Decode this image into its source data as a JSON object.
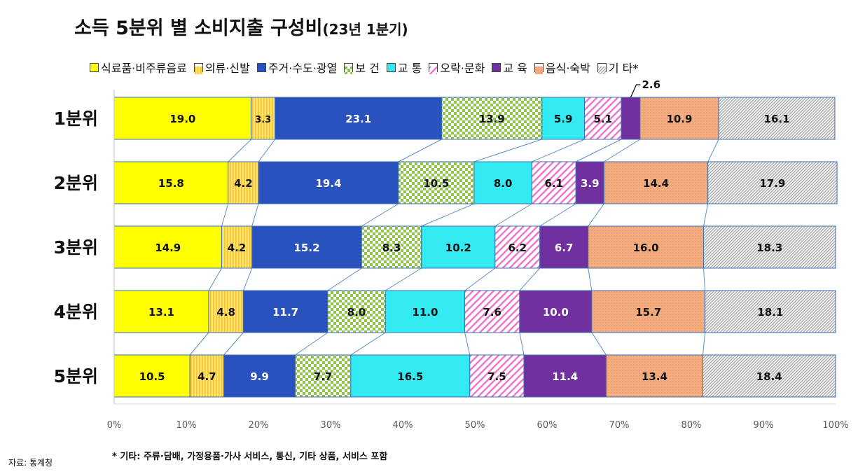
{
  "title": "소득 5분위 별 소비지출 구성비",
  "subtitle": "(23년 1분기)",
  "footnote": "* 기타: 주류·담배, 가정용품·가사 서비스, 통신, 기타 상품, 서비스 포함",
  "source": "자료: 통계청",
  "chart_data": {
    "type": "bar",
    "orientation": "horizontal",
    "stacked": true,
    "title": "소득 5분위 별 소비지출 구성비",
    "subtitle": "(23년 1분기)",
    "categories": [
      "1분위",
      "2분위",
      "3분위",
      "4분위",
      "5분위"
    ],
    "xlim": [
      0,
      100
    ],
    "x_ticks": [
      "0%",
      "10%",
      "20%",
      "30%",
      "40%",
      "50%",
      "60%",
      "70%",
      "80%",
      "90%",
      "100%"
    ],
    "legend_position": "top",
    "grid": false,
    "series": [
      {
        "name": "식료품·비주류음료",
        "color": "#ffff00",
        "pattern": "solid",
        "label_color": "#111111",
        "values": [
          19.0,
          15.8,
          14.9,
          13.1,
          10.5
        ]
      },
      {
        "name": "의류·신발",
        "color": "#f3c13a",
        "pattern": "vstripe",
        "label_color": "#111111",
        "values": [
          3.3,
          4.2,
          4.2,
          4.8,
          4.7
        ]
      },
      {
        "name": "주거·수도·광열",
        "color": "#2a52be",
        "pattern": "solid",
        "label_color": "#ffffff",
        "values": [
          23.1,
          19.4,
          15.2,
          11.7,
          9.9
        ]
      },
      {
        "name": "보 건",
        "color": "#8ec44a",
        "pattern": "checker",
        "label_color": "#111111",
        "values": [
          13.9,
          10.5,
          8.3,
          8.0,
          7.7
        ]
      },
      {
        "name": "교 통",
        "color": "#33eaf2",
        "pattern": "solid",
        "label_color": "#111111",
        "values": [
          5.9,
          8.0,
          10.2,
          11.0,
          16.5
        ]
      },
      {
        "name": "오락·문화",
        "color": "#ee77cc",
        "pattern": "diagonal",
        "label_color": "#111111",
        "values": [
          5.1,
          6.1,
          6.2,
          7.6,
          7.5
        ]
      },
      {
        "name": "교 육",
        "color": "#7030a0",
        "pattern": "solid",
        "label_color": "#ffffff",
        "values": [
          2.6,
          3.9,
          6.7,
          10.0,
          11.4
        ]
      },
      {
        "name": "음식·숙박",
        "color": "#f4ad80",
        "pattern": "dots",
        "label_color": "#111111",
        "values": [
          10.9,
          14.4,
          16.0,
          15.7,
          13.4
        ]
      },
      {
        "name": "기 타*",
        "color": "#9a9a9a",
        "pattern": "hatch",
        "label_color": "#111111",
        "values": [
          16.1,
          17.9,
          18.3,
          18.1,
          18.4
        ]
      }
    ],
    "callouts": [
      {
        "series": "교 육",
        "category": "1분위",
        "text": "2.6"
      }
    ]
  }
}
